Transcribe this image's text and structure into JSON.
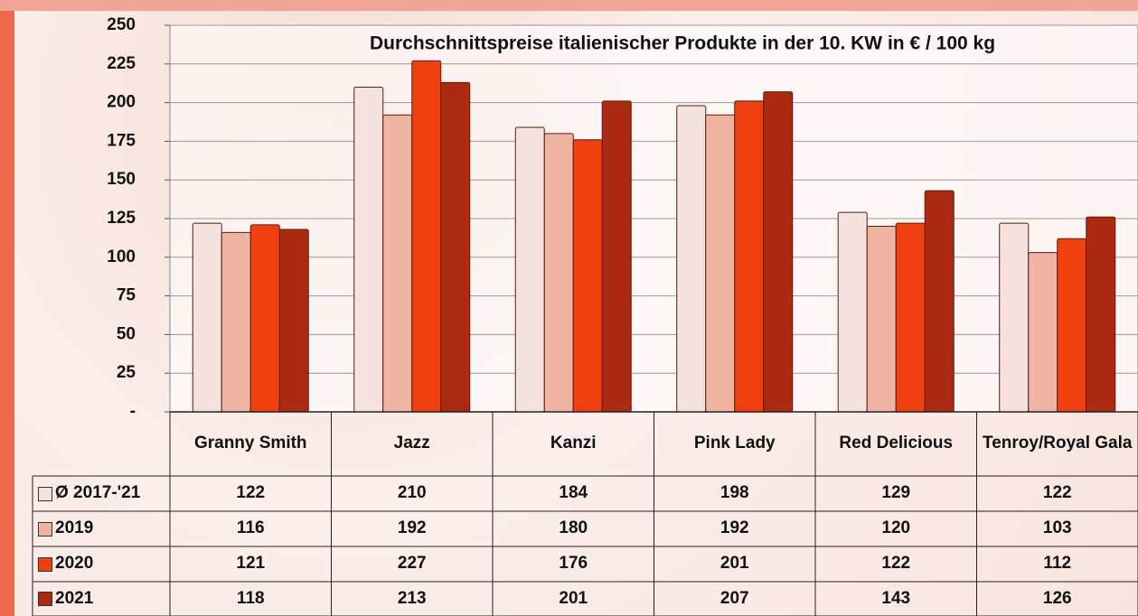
{
  "chart_data": {
    "type": "bar",
    "title": "Durchschnittspreise italienischer Produkte in der 10. KW in € / 100 kg",
    "categories": [
      "Granny Smith",
      "Jazz",
      "Kanzi",
      "Pink Lady",
      "Red Delicious",
      "Tenroy/Royal Gala"
    ],
    "series": [
      {
        "name": "Ø 2017-'21",
        "color": "#f6e2dc",
        "values": [
          122,
          210,
          184,
          198,
          129,
          122
        ]
      },
      {
        "name": "2019",
        "color": "#efb4a2",
        "values": [
          116,
          192,
          180,
          192,
          120,
          103
        ]
      },
      {
        "name": "2020",
        "color": "#f0400f",
        "values": [
          121,
          227,
          176,
          201,
          122,
          112
        ]
      },
      {
        "name": "2021",
        "color": "#ad2a12",
        "values": [
          118,
          213,
          201,
          207,
          143,
          126
        ]
      }
    ],
    "ylim": [
      0,
      250
    ],
    "yticks": [
      {
        "value": 0,
        "label": "-"
      },
      25,
      50,
      75,
      100,
      125,
      150,
      175,
      200,
      225,
      250
    ],
    "grid": true
  }
}
